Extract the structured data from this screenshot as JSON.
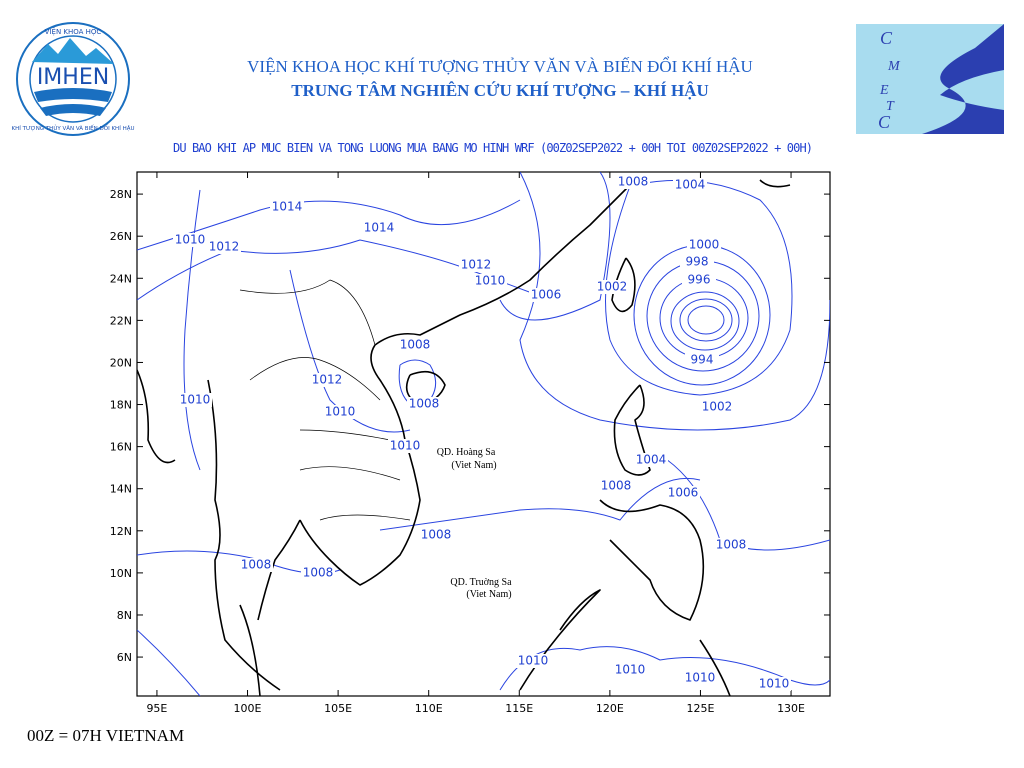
{
  "header": {
    "line1": "VIỆN KHOA HỌC KHÍ TƯỢNG THỦY VĂN VÀ BIẾN ĐỔI KHÍ HẬU",
    "line2": "TRUNG TÂM NGHIÊN CỨU KHÍ TƯỢNG – KHÍ HẬU"
  },
  "logo_left": {
    "name": "IMHEN",
    "top_arc": "VIỆN KHOA HỌC",
    "bottom_arc": "KHÍ TƯỢNG THỦY VĂN VÀ BIẾN ĐỔI KHÍ HẬU"
  },
  "logo_right": {
    "letters": [
      "C",
      "M",
      "E",
      "T",
      "C"
    ]
  },
  "map": {
    "title": "DU BAO KHI AP MUC BIEN VA TONG LUONG MUA BANG MO HINH WRF (00Z02SEP2022 + 00H TOI 00Z02SEP2022 + 00H)",
    "xlim": [
      93.9,
      132.15
    ],
    "ylim": [
      4.15,
      29.05
    ],
    "xticks": [
      {
        "value": 95,
        "label": "95E"
      },
      {
        "value": 100,
        "label": "100E"
      },
      {
        "value": 105,
        "label": "105E"
      },
      {
        "value": 110,
        "label": "110E"
      },
      {
        "value": 115,
        "label": "115E"
      },
      {
        "value": 120,
        "label": "120E"
      },
      {
        "value": 125,
        "label": "125E"
      },
      {
        "value": 130,
        "label": "130E"
      }
    ],
    "yticks": [
      {
        "value": 6,
        "label": "6N"
      },
      {
        "value": 8,
        "label": "8N"
      },
      {
        "value": 10,
        "label": "10N"
      },
      {
        "value": 12,
        "label": "12N"
      },
      {
        "value": 14,
        "label": "14N"
      },
      {
        "value": 16,
        "label": "16N"
      },
      {
        "value": 18,
        "label": "18N"
      },
      {
        "value": 20,
        "label": "20N"
      },
      {
        "value": 22,
        "label": "22N"
      },
      {
        "value": 24,
        "label": "24N"
      },
      {
        "value": 26,
        "label": "26N"
      },
      {
        "value": 28,
        "label": "28N"
      }
    ],
    "contour_labels": [
      1008,
      1004,
      1014,
      1014,
      1010,
      1012,
      1000,
      998,
      1012,
      996,
      1010,
      1006,
      1002,
      1008,
      994,
      1012,
      1010,
      1008,
      1002,
      1010,
      1010,
      1004,
      1008,
      1006,
      1008,
      1008,
      1008,
      1008,
      1010,
      1010,
      1010,
      1010
    ],
    "places": [
      {
        "name": "QD. Hoàng Sa",
        "country": "(Viet Nam)"
      },
      {
        "name": "QD. Truờng Sa",
        "country": "(Viet Nam)"
      }
    ]
  },
  "footer": "00Z = 07H VIETNAM"
}
